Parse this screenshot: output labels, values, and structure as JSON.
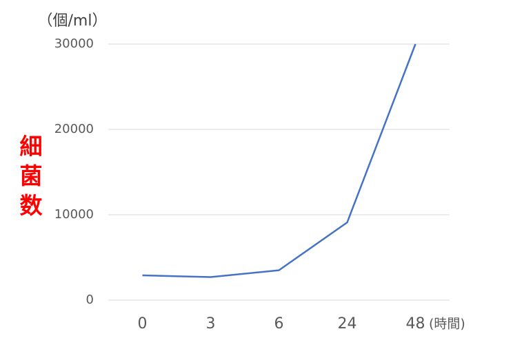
{
  "chart_data": {
    "type": "line",
    "y_label": "細菌数",
    "y_unit": "（個/ml）",
    "x_unit": "(時間)",
    "categories": [
      "0",
      "3",
      "6",
      "24",
      "48"
    ],
    "series": [
      {
        "name": "細菌数",
        "color": "#4472c4",
        "values": [
          2900,
          2700,
          3500,
          9100,
          30000
        ]
      }
    ],
    "ylim": [
      0,
      30000
    ],
    "yticks": [
      0,
      10000,
      20000,
      30000
    ],
    "grid": true
  }
}
